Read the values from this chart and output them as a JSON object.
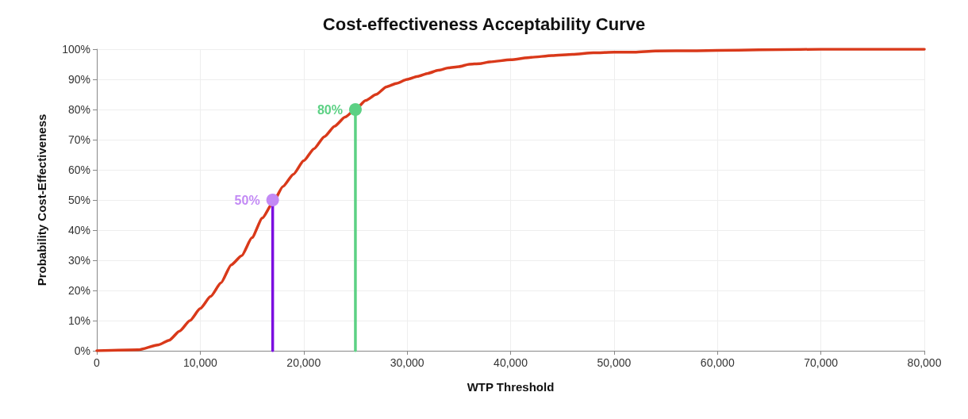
{
  "chart_data": {
    "type": "line",
    "title": "Cost-effectiveness Acceptability Curve",
    "xlabel": "WTP Threshold",
    "ylabel": "Probability Cost-Effectiveness",
    "xlim": [
      0,
      80000
    ],
    "xticks": [
      0,
      {
        "value": 10000,
        "label": "10,000"
      },
      {
        "value": 20000,
        "label": "20,000"
      },
      {
        "value": 30000,
        "label": "30,000"
      },
      {
        "value": 40000,
        "label": "40,000"
      },
      {
        "value": 50000,
        "label": "50,000"
      },
      {
        "value": 60000,
        "label": "60,000"
      },
      {
        "value": 70000,
        "label": "70,000"
      },
      {
        "value": 80000,
        "label": "80,000"
      }
    ],
    "ylim": [
      0,
      100
    ],
    "yticks": [
      {
        "value": 0,
        "label": "0%"
      },
      {
        "value": 10,
        "label": "10%"
      },
      {
        "value": 20,
        "label": "20%"
      },
      {
        "value": 30,
        "label": "30%"
      },
      {
        "value": 40,
        "label": "40%"
      },
      {
        "value": 50,
        "label": "50%"
      },
      {
        "value": 60,
        "label": "60%"
      },
      {
        "value": 70,
        "label": "70%"
      },
      {
        "value": 80,
        "label": "80%"
      },
      {
        "value": 90,
        "label": "90%"
      },
      {
        "value": 100,
        "label": "100%"
      }
    ],
    "grid": true,
    "marker": "none",
    "line_style": "solid",
    "series": [
      {
        "color": "#d9391a",
        "x": [
          0,
          4000,
          6000,
          7000,
          8000,
          9000,
          10000,
          11000,
          12000,
          13000,
          14000,
          15000,
          16000,
          17000,
          18000,
          19000,
          20000,
          21000,
          22000,
          23000,
          24000,
          25000,
          26000,
          27000,
          28000,
          29000,
          30000,
          31000,
          32000,
          33000,
          34000,
          35000,
          36000,
          37000,
          38000,
          40000,
          42000,
          44000,
          46000,
          48000,
          50000,
          52000,
          54000,
          58000,
          62000,
          66000,
          70000,
          80000
        ],
        "values": [
          0,
          0.3,
          2,
          3.5,
          6.5,
          10,
          14,
          18,
          22.5,
          28.5,
          31.5,
          37.5,
          44,
          49,
          54.5,
          58.5,
          63,
          67,
          71,
          74.5,
          77.5,
          80,
          83,
          85,
          87.5,
          88.7,
          90,
          91,
          92,
          93,
          93.8,
          94.2,
          95,
          95.2,
          95.8,
          96.5,
          97.3,
          97.9,
          98.3,
          98.8,
          99,
          99,
          99.4,
          99.5,
          99.7,
          99.9,
          100,
          100
        ]
      },
      {
        "type": "line",
        "color": "#7b0ee0",
        "x": [
          17000,
          17000
        ],
        "values": [
          0,
          50
        ]
      },
      {
        "type": "scatter",
        "marker": "circle",
        "color": "#c38af5",
        "x": [
          17000
        ],
        "values": [
          50
        ],
        "value_labels": [
          "50%"
        ]
      },
      {
        "type": "line",
        "color": "#5cd184",
        "x": [
          25000,
          25000
        ],
        "values": [
          0,
          80
        ]
      },
      {
        "type": "scatter",
        "marker": "circle",
        "color": "#5cd184",
        "x": [
          25000
        ],
        "values": [
          80
        ],
        "value_labels": [
          "80%"
        ]
      }
    ]
  }
}
